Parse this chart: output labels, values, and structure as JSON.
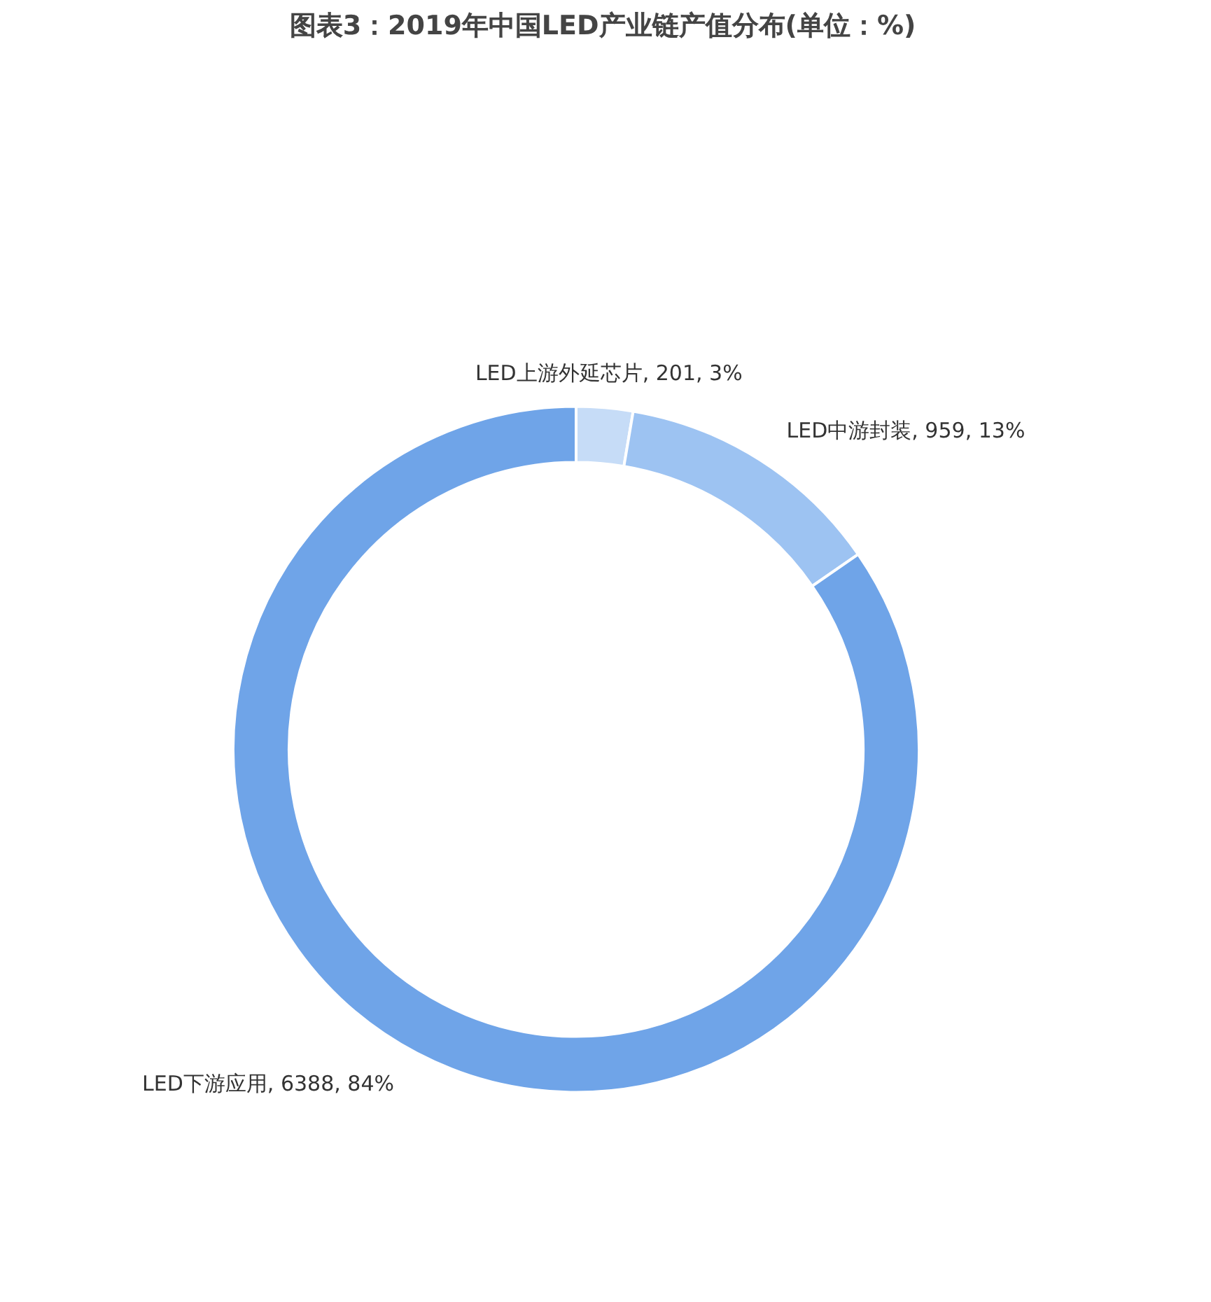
{
  "chart_data": {
    "type": "donut",
    "title": "图表3：2019年中国LED产业链产值分布(单位：%)",
    "categories": [
      "LED上游外延芯片",
      "LED中游封装",
      "LED下游应用"
    ],
    "values": [
      201,
      959,
      6388
    ],
    "value_labels": [
      "201, 3%",
      "959, 13%",
      "6388, 84%"
    ],
    "colors": [
      "#c6dcf7",
      "#9dc3f2",
      "#6fa4e8"
    ]
  }
}
